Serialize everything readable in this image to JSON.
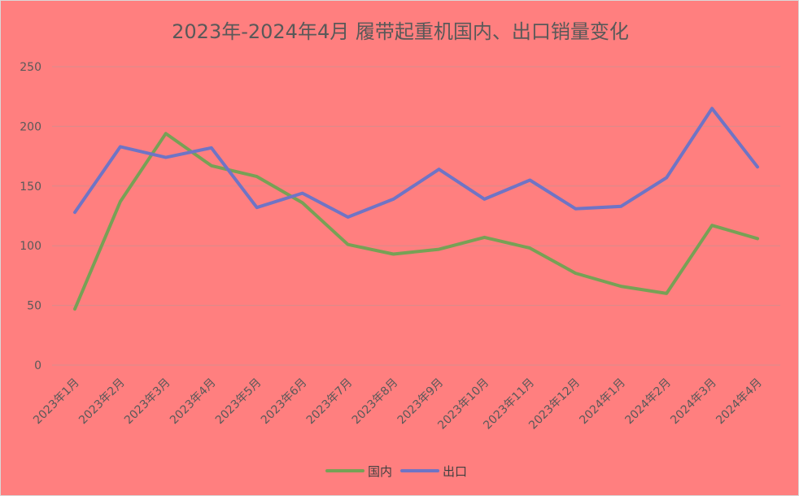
{
  "chart_data": {
    "type": "line",
    "title": "2023年-2024年4月 履带起重机国内、出口销量变化",
    "xlabel": "",
    "ylabel": "",
    "categories": [
      "2023年1月",
      "2023年2月",
      "2023年3月",
      "2023年4月",
      "2023年5月",
      "2023年6月",
      "2023年7月",
      "2023年8月",
      "2023年9月",
      "2023年10月",
      "2023年11月",
      "2023年12月",
      "2024年1月",
      "2024年2月",
      "2024年3月",
      "2024年4月"
    ],
    "ylim": [
      0,
      250
    ],
    "yticks": [
      0,
      50,
      100,
      150,
      200,
      250
    ],
    "grid": true,
    "legend_position": "bottom",
    "series": [
      {
        "name": "国内",
        "color": "#77A155",
        "values": [
          47,
          137,
          194,
          167,
          158,
          136,
          101,
          93,
          97,
          107,
          98,
          77,
          66,
          60,
          117,
          106
        ]
      },
      {
        "name": "出口",
        "color": "#6F74C5",
        "values": [
          128,
          183,
          174,
          182,
          132,
          144,
          124,
          139,
          164,
          139,
          155,
          131,
          133,
          157,
          215,
          166
        ]
      }
    ]
  },
  "colors": {
    "background": "#FF7F7F",
    "gridline": "#D98C8C",
    "text": "#595959"
  }
}
